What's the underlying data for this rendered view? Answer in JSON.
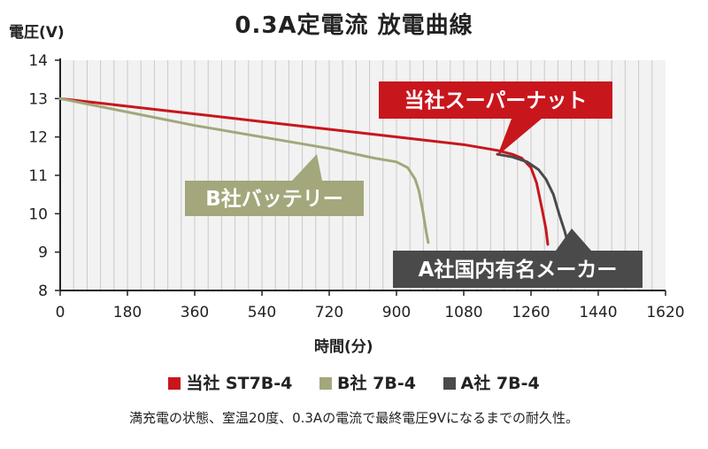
{
  "chart_data": {
    "type": "line",
    "title": "0.3A定電流 放電曲線",
    "ylabel": "電圧(V)",
    "xlabel": "時間(分)",
    "xlim": [
      0,
      1620
    ],
    "ylim": [
      8,
      14
    ],
    "xticks": [
      0,
      180,
      360,
      540,
      720,
      900,
      1080,
      1260,
      1440,
      1620
    ],
    "yticks": [
      8,
      9,
      10,
      11,
      12,
      13,
      14
    ],
    "grid": true,
    "legend_position": "bottom",
    "series": [
      {
        "name": "当社 ST7B-4",
        "color": "#c8161d",
        "callout": "当社スーパーナット",
        "x": [
          0,
          180,
          360,
          540,
          720,
          900,
          1080,
          1170,
          1210,
          1235,
          1260,
          1275,
          1290,
          1300,
          1305
        ],
        "y": [
          13.0,
          12.8,
          12.6,
          12.4,
          12.2,
          12.0,
          11.8,
          11.65,
          11.55,
          11.45,
          11.2,
          10.8,
          10.1,
          9.6,
          9.2
        ]
      },
      {
        "name": "B社 7B-4",
        "color": "#a3a77b",
        "callout": "B社バッテリー",
        "x": [
          0,
          180,
          360,
          540,
          720,
          840,
          900,
          930,
          950,
          960,
          970,
          980,
          985
        ],
        "y": [
          13.0,
          12.65,
          12.3,
          12.0,
          11.7,
          11.45,
          11.35,
          11.2,
          10.9,
          10.6,
          10.1,
          9.5,
          9.25
        ]
      },
      {
        "name": "A社 7B-4",
        "color": "#4a4a4a",
        "callout": "A社国内有名メーカー",
        "x": [
          1170,
          1210,
          1250,
          1280,
          1300,
          1320,
          1335,
          1350,
          1360
        ],
        "y": [
          11.55,
          11.48,
          11.35,
          11.15,
          10.9,
          10.5,
          10.0,
          9.55,
          9.2
        ]
      }
    ]
  },
  "footnote": "満充電の状態、室温20度、0.3Aの電流で最終電圧9Vになるまでの耐久性。"
}
